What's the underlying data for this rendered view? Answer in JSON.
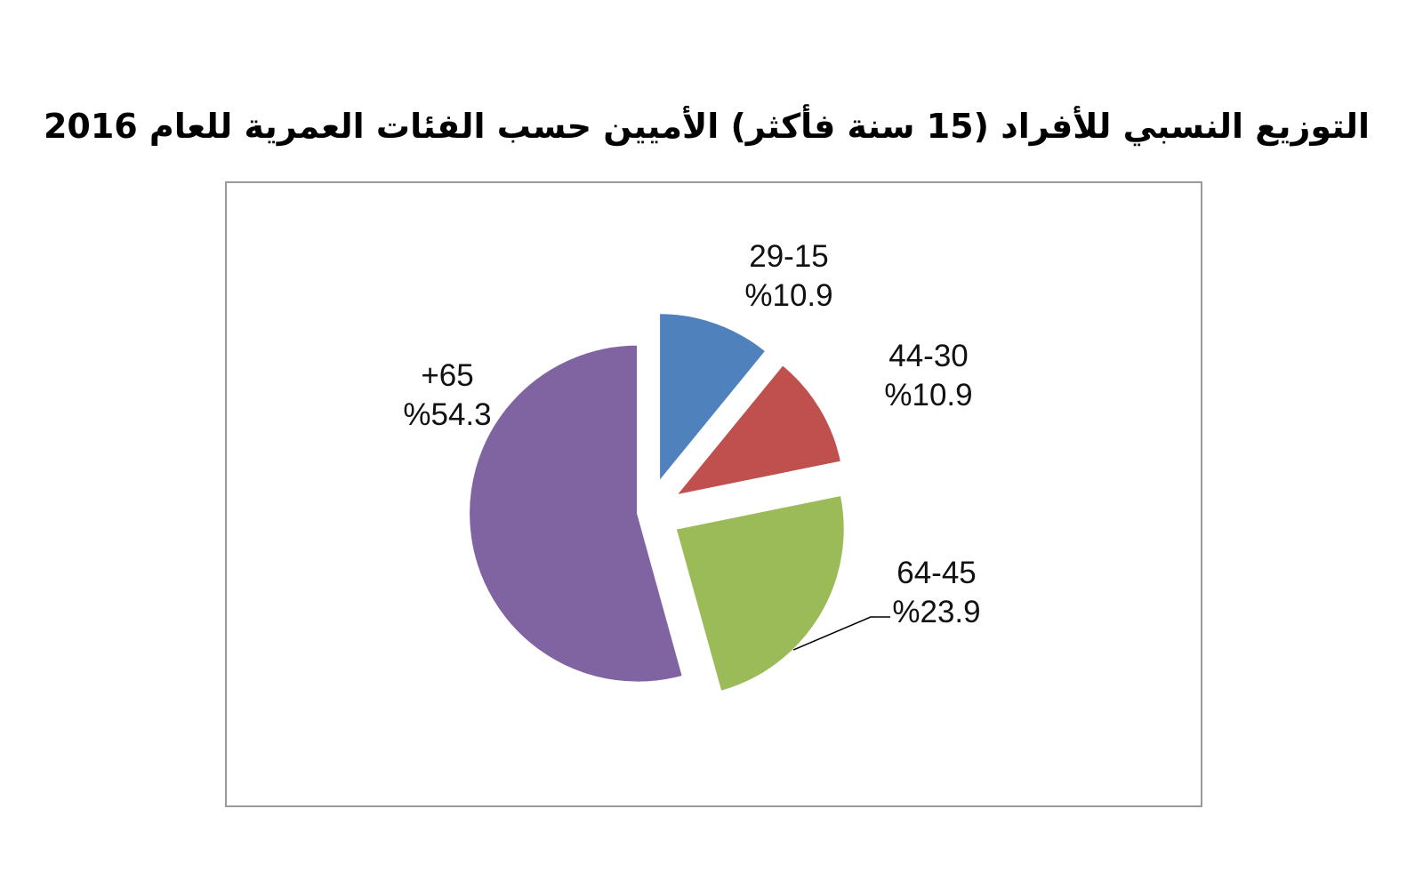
{
  "chart_data": {
    "type": "pie",
    "title": "التوزيع النسبي للأفراد (15 سنة فأكثر) الأميين حسب الفئات العمرية للعام 2016",
    "slices": [
      {
        "category": "29-15",
        "value": 10.9,
        "value_label": "%10.9",
        "color": "#4f81bd"
      },
      {
        "category": "44-30",
        "value": 10.9,
        "value_label": "%10.9",
        "color": "#c0504d"
      },
      {
        "category": "64-45",
        "value": 23.9,
        "value_label": "%23.9",
        "color": "#9bbb59"
      },
      {
        "category": "+65",
        "value": 54.3,
        "value_label": "%54.3",
        "color": "#8064a2"
      }
    ],
    "start_angle_deg": 0,
    "direction": "clockwise",
    "exploded": true,
    "legend": "none"
  }
}
